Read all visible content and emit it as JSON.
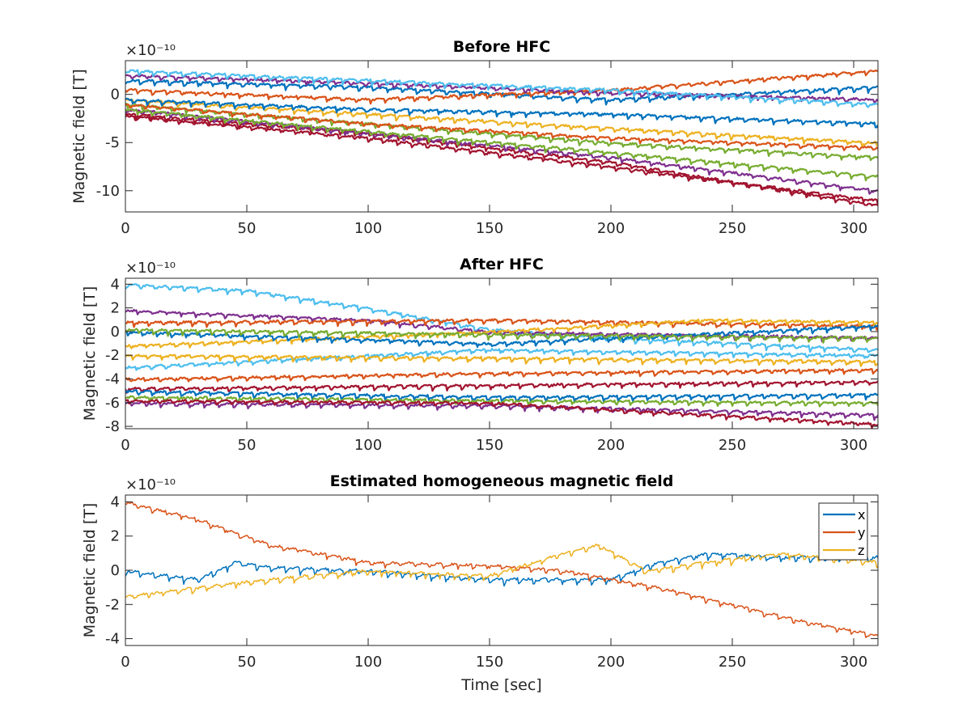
{
  "colors": [
    "#0072BD",
    "#D95319",
    "#EDB120",
    "#7E2F8E",
    "#77AC30",
    "#4DBEEE",
    "#A2142F"
  ],
  "chart_data": [
    {
      "type": "line",
      "title": "Before HFC",
      "ylabel": "Magnetic field [T]",
      "xlabel": "",
      "exponent": "×10⁻¹⁰",
      "xlim": [
        0,
        310
      ],
      "ylim": [
        -12.2,
        3.5
      ],
      "xticks": [
        0,
        50,
        100,
        150,
        200,
        250,
        300
      ],
      "yticks": [
        -10,
        -5,
        0
      ],
      "series": [
        {
          "color_idx": 0,
          "values": [
            [
              0,
              1.5
            ],
            [
              100,
              0.8
            ],
            [
              200,
              -0.5
            ],
            [
              310,
              0.8
            ]
          ]
        },
        {
          "color_idx": 1,
          "values": [
            [
              0,
              0.5
            ],
            [
              100,
              -0.5
            ],
            [
              200,
              0.5
            ],
            [
              310,
              2.5
            ]
          ]
        },
        {
          "color_idx": 2,
          "values": [
            [
              0,
              -0.5
            ],
            [
              100,
              -2.0
            ],
            [
              200,
              -3.5
            ],
            [
              310,
              -5.0
            ]
          ]
        },
        {
          "color_idx": 3,
          "values": [
            [
              0,
              2.0
            ],
            [
              100,
              1.2
            ],
            [
              200,
              0.2
            ],
            [
              310,
              -0.5
            ]
          ]
        },
        {
          "color_idx": 4,
          "values": [
            [
              0,
              -1.0
            ],
            [
              100,
              -3.0
            ],
            [
              200,
              -5.0
            ],
            [
              310,
              -6.5
            ]
          ]
        },
        {
          "color_idx": 5,
          "values": [
            [
              0,
              2.5
            ],
            [
              100,
              1.5
            ],
            [
              200,
              0.5
            ],
            [
              310,
              -1.0
            ]
          ]
        },
        {
          "color_idx": 6,
          "values": [
            [
              0,
              -2.0
            ],
            [
              100,
              -4.0
            ],
            [
              200,
              -7.0
            ],
            [
              310,
              -11.5
            ]
          ]
        },
        {
          "color_idx": 0,
          "values": [
            [
              0,
              -0.5
            ],
            [
              100,
              -1.5
            ],
            [
              200,
              -2.0
            ],
            [
              310,
              -3.0
            ]
          ]
        },
        {
          "color_idx": 1,
          "values": [
            [
              0,
              -1.0
            ],
            [
              100,
              -3.0
            ],
            [
              200,
              -4.5
            ],
            [
              310,
              -5.5
            ]
          ]
        },
        {
          "color_idx": 3,
          "values": [
            [
              0,
              -1.5
            ],
            [
              100,
              -4.0
            ],
            [
              200,
              -6.5
            ],
            [
              310,
              -10.0
            ]
          ]
        },
        {
          "color_idx": 4,
          "values": [
            [
              0,
              -1.5
            ],
            [
              100,
              -3.8
            ],
            [
              200,
              -6.0
            ],
            [
              310,
              -8.5
            ]
          ]
        },
        {
          "color_idx": 6,
          "values": [
            [
              0,
              -2.2
            ],
            [
              100,
              -4.5
            ],
            [
              200,
              -7.5
            ],
            [
              310,
              -11.0
            ]
          ]
        }
      ]
    },
    {
      "type": "line",
      "title": "After HFC",
      "ylabel": "Magnetic field [T]",
      "xlabel": "",
      "exponent": "×10⁻¹⁰",
      "xlim": [
        0,
        310
      ],
      "ylim": [
        -8.2,
        4.5
      ],
      "xticks": [
        0,
        50,
        100,
        150,
        200,
        250,
        300
      ],
      "yticks": [
        -8,
        -6,
        -4,
        -2,
        0,
        2,
        4
      ],
      "series": [
        {
          "color_idx": 5,
          "values": [
            [
              0,
              4.0
            ],
            [
              50,
              3.5
            ],
            [
              100,
              2.0
            ],
            [
              150,
              0.2
            ],
            [
              200,
              -0.5
            ],
            [
              310,
              -1.5
            ]
          ]
        },
        {
          "color_idx": 3,
          "values": [
            [
              0,
              1.8
            ],
            [
              100,
              1.0
            ],
            [
              150,
              0.0
            ],
            [
              310,
              -0.5
            ]
          ]
        },
        {
          "color_idx": 1,
          "values": [
            [
              0,
              0.8
            ],
            [
              150,
              1.0
            ],
            [
              310,
              0.5
            ]
          ]
        },
        {
          "color_idx": 2,
          "values": [
            [
              0,
              -1.2
            ],
            [
              150,
              0.0
            ],
            [
              240,
              1.0
            ],
            [
              310,
              0.8
            ]
          ]
        },
        {
          "color_idx": 0,
          "values": [
            [
              0,
              0.0
            ],
            [
              150,
              -1.0
            ],
            [
              310,
              0.5
            ]
          ]
        },
        {
          "color_idx": 4,
          "values": [
            [
              0,
              0.2
            ],
            [
              150,
              -0.2
            ],
            [
              310,
              -0.5
            ]
          ]
        },
        {
          "color_idx": 5,
          "values": [
            [
              0,
              -3.0
            ],
            [
              150,
              -1.5
            ],
            [
              310,
              -2.0
            ]
          ]
        },
        {
          "color_idx": 2,
          "values": [
            [
              0,
              -2.0
            ],
            [
              150,
              -2.2
            ],
            [
              310,
              -2.5
            ]
          ]
        },
        {
          "color_idx": 1,
          "values": [
            [
              0,
              -4.0
            ],
            [
              150,
              -3.5
            ],
            [
              310,
              -3.2
            ]
          ]
        },
        {
          "color_idx": 6,
          "values": [
            [
              0,
              -4.8
            ],
            [
              150,
              -4.5
            ],
            [
              310,
              -4.2
            ]
          ]
        },
        {
          "color_idx": 0,
          "values": [
            [
              0,
              -5.0
            ],
            [
              150,
              -5.5
            ],
            [
              310,
              -5.3
            ]
          ]
        },
        {
          "color_idx": 4,
          "values": [
            [
              0,
              -5.5
            ],
            [
              150,
              -5.8
            ],
            [
              310,
              -6.0
            ]
          ]
        },
        {
          "color_idx": 3,
          "values": [
            [
              0,
              -6.0
            ],
            [
              150,
              -6.2
            ],
            [
              310,
              -7.0
            ]
          ]
        },
        {
          "color_idx": 6,
          "values": [
            [
              0,
              -5.8
            ],
            [
              150,
              -6.0
            ],
            [
              310,
              -7.8
            ]
          ]
        }
      ]
    },
    {
      "type": "line",
      "title": "Estimated homogeneous magnetic field",
      "ylabel": "Magnetic field [T]",
      "xlabel": "Time [sec]",
      "exponent": "×10⁻¹⁰",
      "xlim": [
        0,
        310
      ],
      "ylim": [
        -4.4,
        4.4
      ],
      "xticks": [
        0,
        50,
        100,
        150,
        200,
        250,
        300
      ],
      "yticks": [
        -4,
        -2,
        0,
        2,
        4
      ],
      "legend": {
        "position": "top-right",
        "entries": [
          "x",
          "y",
          "z"
        ]
      },
      "series": [
        {
          "name": "x",
          "color_idx": 0,
          "values": [
            [
              0,
              0.0
            ],
            [
              30,
              -0.5
            ],
            [
              45,
              0.5
            ],
            [
              60,
              0.2
            ],
            [
              100,
              0.0
            ],
            [
              150,
              -0.5
            ],
            [
              200,
              -0.5
            ],
            [
              220,
              0.5
            ],
            [
              240,
              1.0
            ],
            [
              270,
              0.8
            ],
            [
              310,
              0.8
            ]
          ]
        },
        {
          "name": "y",
          "color_idx": 1,
          "values": [
            [
              0,
              4.0
            ],
            [
              30,
              3.0
            ],
            [
              60,
              1.5
            ],
            [
              100,
              0.5
            ],
            [
              150,
              0.3
            ],
            [
              180,
              0.0
            ],
            [
              200,
              -0.5
            ],
            [
              220,
              -1.0
            ],
            [
              250,
              -2.0
            ],
            [
              280,
              -3.0
            ],
            [
              310,
              -3.8
            ]
          ]
        },
        {
          "name": "z",
          "color_idx": 2,
          "values": [
            [
              0,
              -1.5
            ],
            [
              30,
              -1.0
            ],
            [
              60,
              -0.5
            ],
            [
              100,
              0.0
            ],
            [
              150,
              -0.3
            ],
            [
              180,
              1.0
            ],
            [
              195,
              1.5
            ],
            [
              215,
              0.0
            ],
            [
              240,
              0.5
            ],
            [
              270,
              1.0
            ],
            [
              310,
              0.5
            ]
          ]
        }
      ]
    }
  ]
}
